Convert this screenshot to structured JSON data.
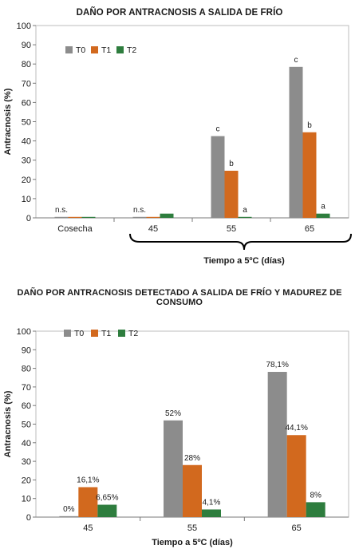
{
  "chart_data": [
    {
      "type": "bar",
      "title": "DAÑO POR ANTRACNOSIS A SALIDA DE FRÍO",
      "ylabel": "Antracnosis (%)",
      "xlabel": "Tiempo a 5ºC (días)",
      "ylim": [
        0,
        100
      ],
      "yticks": [
        "0",
        "10",
        "20",
        "30",
        "40",
        "50",
        "60",
        "70",
        "80",
        "90",
        "100"
      ],
      "legend_position": "top-left",
      "categories": [
        "Cosecha",
        "45",
        "55",
        "65"
      ],
      "series": [
        {
          "name": "T0",
          "color": "#8c8c8c",
          "values": [
            0.5,
            0.5,
            42.5,
            78.5
          ],
          "labels": [
            "n.s.",
            "n.s.",
            "c",
            "c"
          ]
        },
        {
          "name": "T1",
          "color": "#d2691e",
          "values": [
            0.5,
            0.5,
            24.5,
            44.5
          ],
          "labels": [
            "",
            "",
            "b",
            "b"
          ]
        },
        {
          "name": "T2",
          "color": "#2e7d3e",
          "values": [
            0.5,
            2.2,
            0.5,
            2.2
          ],
          "labels": [
            "",
            "",
            "a",
            "a"
          ]
        }
      ]
    },
    {
      "type": "bar",
      "title": "DAÑO POR ANTRACNOSIS DETECTADO A SALIDA DE FRÍO Y MADUREZ DE CONSUMO",
      "ylabel": "Antracnosis (%)",
      "xlabel": "Tiempo a 5ºC (días)",
      "ylim": [
        0,
        100
      ],
      "yticks": [
        "0",
        "10",
        "20",
        "30",
        "40",
        "50",
        "60",
        "70",
        "80",
        "90",
        "100"
      ],
      "legend_position": "top-left",
      "categories": [
        "45",
        "55",
        "65"
      ],
      "series": [
        {
          "name": "T0",
          "color": "#8c8c8c",
          "values": [
            0.5,
            52,
            78.1
          ],
          "labels": [
            "0%",
            "52%",
            "78,1%"
          ]
        },
        {
          "name": "T1",
          "color": "#d2691e",
          "values": [
            16.1,
            28,
            44.1
          ],
          "labels": [
            "16,1%",
            "28%",
            "44,1%"
          ]
        },
        {
          "name": "T2",
          "color": "#2e7d3e",
          "values": [
            6.65,
            4.1,
            8
          ],
          "labels": [
            "6,65%",
            "4,1%",
            "8%"
          ]
        }
      ]
    }
  ]
}
